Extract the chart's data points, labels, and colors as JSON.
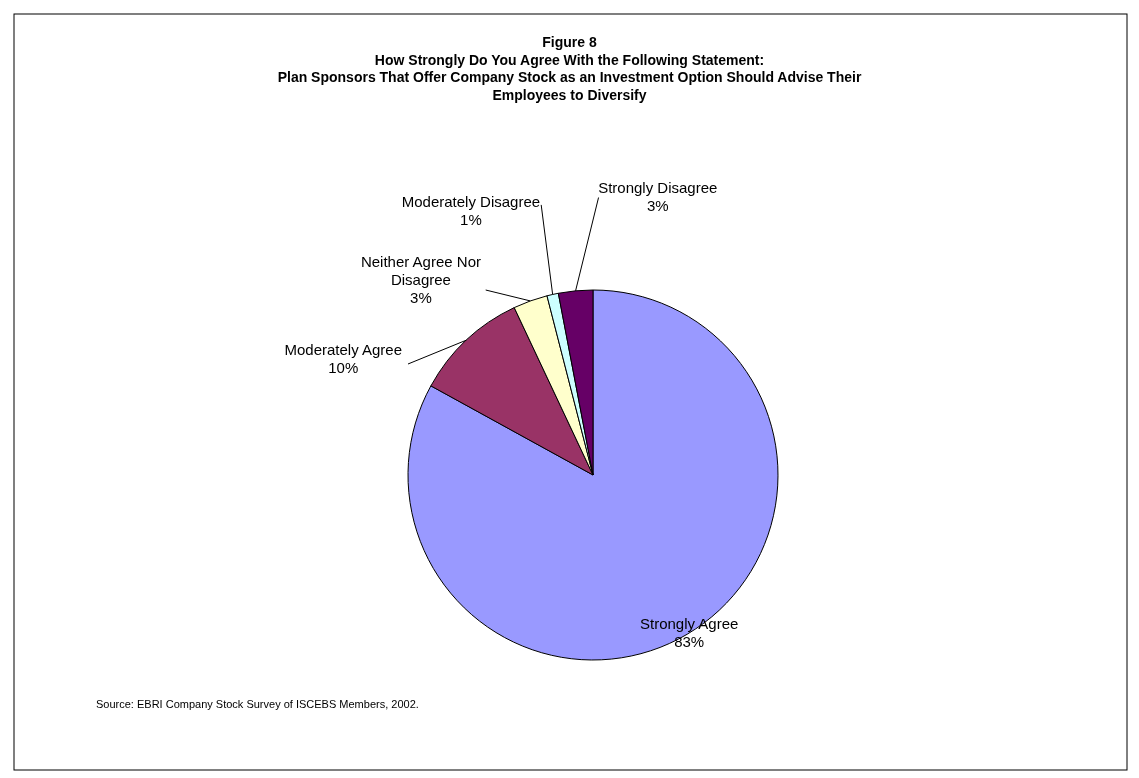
{
  "chart_data": {
    "type": "pie",
    "title": "Figure 8",
    "subtitle": "How Strongly Do You Agree With the Following Statement: Plan Sponsors That Offer Company Stock as an Investment Option Should Advise Their Employees to Diversify",
    "categories": [
      "Strongly Agree",
      "Moderately Agree",
      "Neither Agree Nor Disagree",
      "Moderately Disagree",
      "Strongly Disagree"
    ],
    "values": [
      83,
      10,
      3,
      1,
      3
    ],
    "colors": [
      "#9999ff",
      "#993366",
      "#ffffcc",
      "#ccffff",
      "#660066"
    ],
    "value_labels": [
      "83%",
      "10%",
      "3%",
      "1%",
      "3%"
    ],
    "annotations": [
      "Source: EBRI Company Stock Survey of ISCEBS Members, 2002."
    ]
  }
}
